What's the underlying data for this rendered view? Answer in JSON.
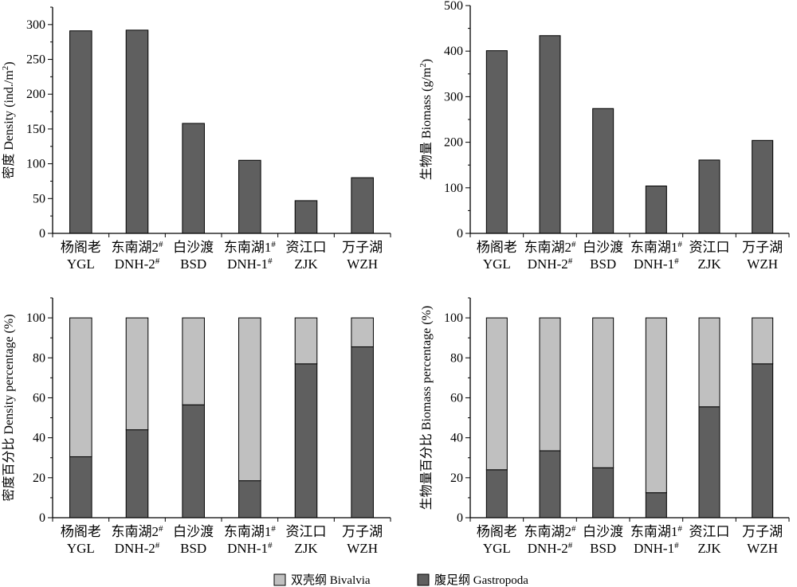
{
  "legend": {
    "bivalvia_label": "双壳纲 Bivalvia",
    "gastropoda_label": "腹足纲 Gastropoda"
  },
  "colors": {
    "bivalvia": "#c0c0c0",
    "gastropoda": "#5f5f5f"
  },
  "chart_data": [
    {
      "type": "bar",
      "ylabel": "密度 Density (ind./m²)",
      "ylim": [
        0,
        325
      ],
      "yticks": [
        0,
        50,
        100,
        150,
        200,
        250,
        300
      ],
      "categories": [
        [
          "杨阁老",
          "YGL"
        ],
        [
          "东南湖2#",
          "DNH-2#"
        ],
        [
          "白沙渡",
          "BSD"
        ],
        [
          "东南湖1#",
          "DNH-1#"
        ],
        [
          "资江口",
          "ZJK"
        ],
        [
          "万子湖",
          "WZH"
        ]
      ],
      "values": [
        291,
        292,
        158,
        105,
        47,
        80
      ]
    },
    {
      "type": "bar",
      "ylabel": "生物量 Biomass (g/m²)",
      "ylim": [
        0,
        500
      ],
      "yticks": [
        0,
        100,
        200,
        300,
        400,
        500
      ],
      "categories": [
        [
          "杨阁老",
          "YGL"
        ],
        [
          "东南湖2#",
          "DNH-2#"
        ],
        [
          "白沙渡",
          "BSD"
        ],
        [
          "东南湖1#",
          "DNH-1#"
        ],
        [
          "资江口",
          "ZJK"
        ],
        [
          "万子湖",
          "WZH"
        ]
      ],
      "values": [
        401,
        434,
        274,
        104,
        161,
        204
      ]
    },
    {
      "type": "bar",
      "stacked": true,
      "ylabel": "密度百分比 Density percentage (%)",
      "ylim": [
        0,
        110
      ],
      "yticks": [
        0,
        20,
        40,
        60,
        80,
        100
      ],
      "categories": [
        [
          "杨阁老",
          "YGL"
        ],
        [
          "东南湖2#",
          "DNH-2#"
        ],
        [
          "白沙渡",
          "BSD"
        ],
        [
          "东南湖1#",
          "DNH-1#"
        ],
        [
          "资江口",
          "ZJK"
        ],
        [
          "万子湖",
          "WZH"
        ]
      ],
      "series": [
        {
          "name": "腹足纲 Gastropoda",
          "values": [
            30.5,
            44,
            56.5,
            18.5,
            77,
            85.5
          ]
        },
        {
          "name": "双壳纲 Bivalvia",
          "values": [
            69.5,
            56,
            43.5,
            81.5,
            23,
            14.5
          ]
        }
      ]
    },
    {
      "type": "bar",
      "stacked": true,
      "ylabel": "生物量百分比 Biomass percentage (%)",
      "ylim": [
        0,
        110
      ],
      "yticks": [
        0,
        20,
        40,
        60,
        80,
        100
      ],
      "categories": [
        [
          "杨阁老",
          "YGL"
        ],
        [
          "东南湖2#",
          "DNH-2#"
        ],
        [
          "白沙渡",
          "BSD"
        ],
        [
          "东南湖1#",
          "DNH-1#"
        ],
        [
          "资江口",
          "ZJK"
        ],
        [
          "万子湖",
          "WZH"
        ]
      ],
      "series": [
        {
          "name": "腹足纲 Gastropoda",
          "values": [
            24,
            33.5,
            25,
            12.5,
            55.5,
            77
          ]
        },
        {
          "name": "双壳纲 Bivalvia",
          "values": [
            76,
            66.5,
            75,
            87.5,
            44.5,
            23
          ]
        }
      ]
    }
  ]
}
